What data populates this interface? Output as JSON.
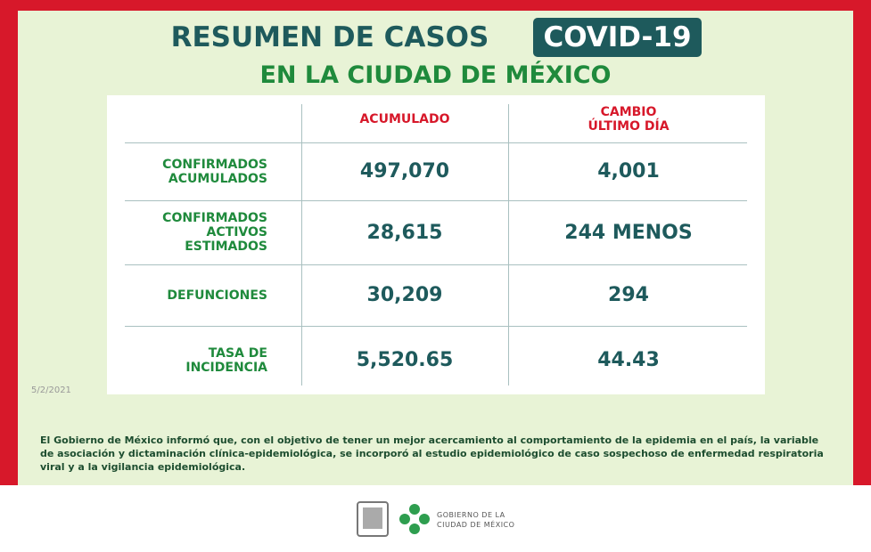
{
  "header": {
    "title": "RESUMEN DE CASOS",
    "badge": "COVID-19",
    "subtitle": "EN LA CIUDAD DE MÉXICO"
  },
  "table": {
    "columns": [
      "ACUMULADO",
      "CAMBIO\nÚLTIMO DÍA"
    ],
    "rows": [
      [
        "CONFIRMADOS\nACUMULADOS",
        "497,070",
        "4,001"
      ],
      [
        "CONFIRMADOS\nACTIVOS\nESTIMADOS",
        "28,615",
        "244 MENOS"
      ],
      [
        "DEFUNCIONES",
        "30,209",
        "294"
      ],
      [
        "TASA DE\nINCIDENCIA",
        "5,520.65",
        "44.43"
      ]
    ]
  },
  "date": "5/2/2021",
  "note": "El Gobierno de México informó que, con el objetivo de tener un mejor acercamiento al comportamiento de la epidemia en el país, la variable de asociación y dictaminación clínica-epidemiológica, se incorporó al estudio epidemiológico de caso sospechoso de enfermedad respiratoria viral y a la vigilancia epidemiológica.",
  "footer": {
    "logo_text": "GOBIERNO DE LA\nCIUDAD DE MÉXICO"
  }
}
